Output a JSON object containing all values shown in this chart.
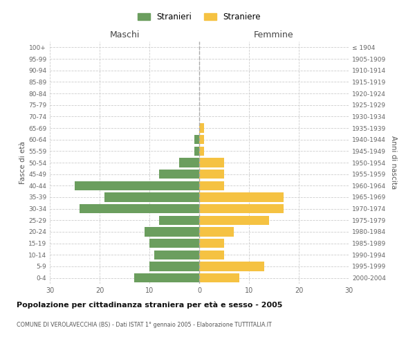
{
  "age_groups": [
    "0-4",
    "5-9",
    "10-14",
    "15-19",
    "20-24",
    "25-29",
    "30-34",
    "35-39",
    "40-44",
    "45-49",
    "50-54",
    "55-59",
    "60-64",
    "65-69",
    "70-74",
    "75-79",
    "80-84",
    "85-89",
    "90-94",
    "95-99",
    "100+"
  ],
  "birth_years": [
    "2000-2004",
    "1995-1999",
    "1990-1994",
    "1985-1989",
    "1980-1984",
    "1975-1979",
    "1970-1974",
    "1965-1969",
    "1960-1964",
    "1955-1959",
    "1950-1954",
    "1945-1949",
    "1940-1944",
    "1935-1939",
    "1930-1934",
    "1925-1929",
    "1920-1924",
    "1915-1919",
    "1910-1914",
    "1905-1909",
    "≤ 1904"
  ],
  "maschi": [
    13,
    10,
    9,
    10,
    11,
    8,
    24,
    19,
    25,
    8,
    4,
    1,
    1,
    0,
    0,
    0,
    0,
    0,
    0,
    0,
    0
  ],
  "femmine": [
    8,
    13,
    5,
    5,
    7,
    14,
    17,
    17,
    5,
    5,
    5,
    1,
    1,
    1,
    0,
    0,
    0,
    0,
    0,
    0,
    0
  ],
  "color_maschi": "#6b9e5e",
  "color_femmine": "#f5c242",
  "xlim": 30,
  "title": "Popolazione per cittadinanza straniera per età e sesso - 2005",
  "subtitle": "COMUNE DI VEROLAVECCHIA (BS) - Dati ISTAT 1° gennaio 2005 - Elaborazione TUTTITALIA.IT",
  "ylabel_left": "Fasce di età",
  "ylabel_right": "Anni di nascita",
  "legend_maschi": "Stranieri",
  "legend_femmine": "Straniere",
  "xlabel_maschi": "Maschi",
  "xlabel_femmine": "Femmine",
  "bar_height": 0.8,
  "bg_color": "#ffffff",
  "grid_color": "#cccccc",
  "axis_label_color": "#555555",
  "tick_label_color": "#666666"
}
